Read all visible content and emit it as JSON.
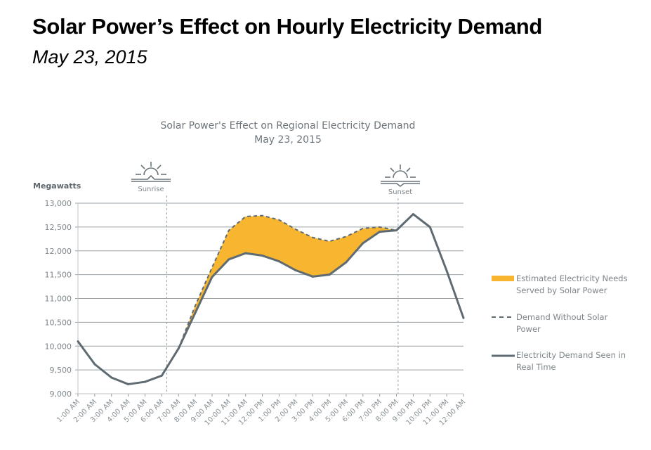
{
  "page": {
    "title": "Solar Power’s Effect on Hourly Electricity Demand",
    "subtitle": "May 23, 2015"
  },
  "chart_data": {
    "type": "area",
    "title": "Solar Power's Effect on Regional Electricity Demand",
    "subtitle": "May 23, 2015",
    "ylabel": "Megawatts",
    "xlabel": "",
    "ylim": [
      9000,
      13000
    ],
    "yticks": [
      9000,
      9500,
      10000,
      10500,
      11000,
      11500,
      12000,
      12500,
      13000
    ],
    "ytick_labels": [
      "9,000",
      "9,500",
      "10,000",
      "10,500",
      "11,000",
      "11,500",
      "12,000",
      "12,500",
      "13,000"
    ],
    "grid": true,
    "categories": [
      "1:00 AM",
      "2:00 AM",
      "3:00 AM",
      "4:00 AM",
      "5:00 AM",
      "6:00 AM",
      "7:00 AM",
      "8:00 AM",
      "9:00 AM",
      "10:00 AM",
      "11:00 AM",
      "12:00 PM",
      "1:00 PM",
      "2:00 PM",
      "3:00 PM",
      "4:00 PM",
      "5:00 PM",
      "6:00 PM",
      "7:00 PM",
      "8:00 PM",
      "9:00 PM",
      "10:00 PM",
      "11:00 PM",
      "12:00 AM"
    ],
    "series": [
      {
        "name": "Electricity Demand Seen in Real Time",
        "style": "solid",
        "color": "#5f6b72",
        "values": [
          10100,
          9620,
          9340,
          9200,
          9250,
          9380,
          9950,
          10700,
          11450,
          11820,
          11950,
          11900,
          11780,
          11590,
          11460,
          11500,
          11760,
          12160,
          12400,
          12430,
          12770,
          12500,
          11580,
          10590
        ]
      },
      {
        "name": "Demand Without Solar Power",
        "style": "dashed",
        "color": "#5f6b72",
        "values": [
          null,
          null,
          null,
          null,
          null,
          null,
          9950,
          10850,
          11650,
          12430,
          12720,
          12740,
          12650,
          12450,
          12280,
          12200,
          12300,
          12470,
          12500,
          12430,
          null,
          null,
          null,
          null
        ]
      }
    ],
    "fill": {
      "name": "Estimated Electricity Needs Served by Solar Power",
      "color": "#f8b52f",
      "between": [
        "Demand Without Solar Power",
        "Electricity Demand Seen in Real Time"
      ]
    },
    "annotations": [
      {
        "label": "Sunrise",
        "x_hour": 6.3,
        "icon": "sunrise-icon"
      },
      {
        "label": "Sunset",
        "x_hour": 20.1,
        "icon": "sunset-icon"
      }
    ],
    "legend": {
      "placement": "right",
      "entries": [
        {
          "line1": "Estimated Electricity Needs",
          "line2": "Served by Solar Power",
          "kind": "fill"
        },
        {
          "line1": "Demand Without Solar",
          "line2": "Power",
          "kind": "dashed"
        },
        {
          "line1": "Electricity Demand Seen in",
          "line2": "Real Time",
          "kind": "solid"
        }
      ]
    }
  }
}
